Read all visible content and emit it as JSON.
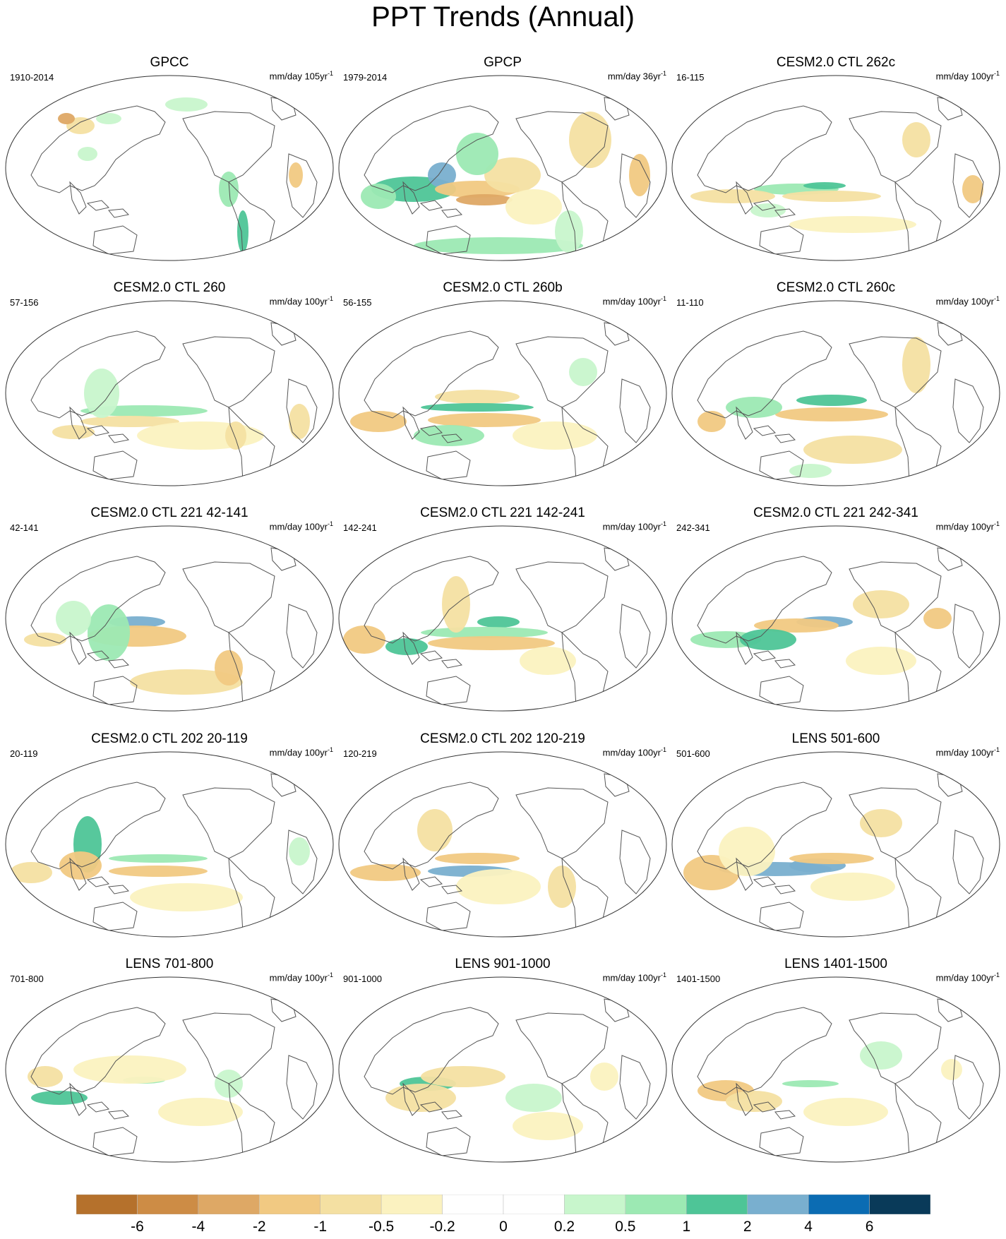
{
  "title": "PPT Trends (Annual)",
  "units_prefix": "mm/day",
  "units_suffix": "-1",
  "panels": [
    {
      "title": "GPCC",
      "period": "1910-2014",
      "units_main": "mm/day 105yr",
      "pattern": 0
    },
    {
      "title": "GPCP",
      "period": "1979-2014",
      "units_main": "mm/day 36yr",
      "pattern": 1
    },
    {
      "title": "CESM2.0 CTL 262c",
      "period": "16-115",
      "units_main": "mm/day 100yr",
      "pattern": 2
    },
    {
      "title": "CESM2.0 CTL 260",
      "period": "57-156",
      "units_main": "mm/day 100yr",
      "pattern": 3
    },
    {
      "title": "CESM2.0 CTL 260b",
      "period": "56-155",
      "units_main": "mm/day 100yr",
      "pattern": 4
    },
    {
      "title": "CESM2.0 CTL 260c",
      "period": "11-110",
      "units_main": "mm/day 100yr",
      "pattern": 5
    },
    {
      "title": "CESM2.0 CTL 221 42-141",
      "period": "42-141",
      "units_main": "mm/day 100yr",
      "pattern": 6
    },
    {
      "title": "CESM2.0 CTL 221 142-241",
      "period": "142-241",
      "units_main": "mm/day 100yr",
      "pattern": 7
    },
    {
      "title": "CESM2.0 CTL 221 242-341",
      "period": "242-341",
      "units_main": "mm/day 100yr",
      "pattern": 8
    },
    {
      "title": "CESM2.0 CTL 202 20-119",
      "period": "20-119",
      "units_main": "mm/day 100yr",
      "pattern": 9
    },
    {
      "title": "CESM2.0 CTL 202 120-219",
      "period": "120-219",
      "units_main": "mm/day 100yr",
      "pattern": 10
    },
    {
      "title": "LENS 501-600",
      "period": "501-600",
      "units_main": "mm/day 100yr",
      "pattern": 11
    },
    {
      "title": "LENS 701-800",
      "period": "701-800",
      "units_main": "mm/day 100yr",
      "pattern": 12
    },
    {
      "title": "LENS 901-1000",
      "period": "901-1000",
      "units_main": "mm/day 100yr",
      "pattern": 13
    },
    {
      "title": "LENS 1401-1500",
      "period": "1401-1500",
      "units_main": "mm/day 100yr",
      "pattern": 14
    }
  ],
  "colorbar": {
    "colors": [
      "#b5712c",
      "#cd8c45",
      "#dea865",
      "#f1c982",
      "#f4e0a2",
      "#fbf2c0",
      "#ffffff",
      "#ffffff",
      "#c8f6cc",
      "#9ce9b3",
      "#4ec597",
      "#79afcf",
      "#0b6cb3",
      "#093a59"
    ],
    "labels": [
      "-6",
      "-4",
      "-2",
      "-1",
      "-0.5",
      "-0.2",
      "0",
      "0.2",
      "0.5",
      "1",
      "2",
      "4",
      "6"
    ]
  }
}
